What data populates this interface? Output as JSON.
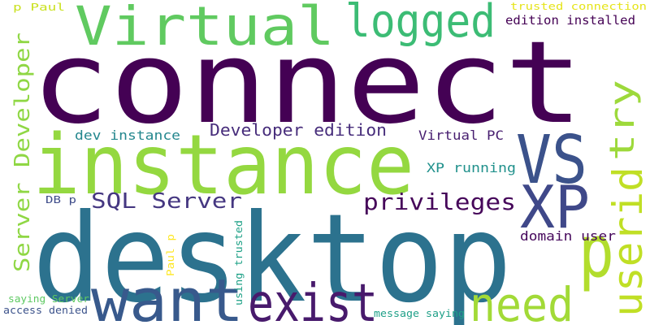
{
  "words": [
    {
      "id": "connect",
      "text": "connect",
      "color": "#440154"
    },
    {
      "id": "desktop",
      "text": "desktop",
      "color": "#2c728e"
    },
    {
      "id": "instance",
      "text": "instance",
      "color": "#94d840"
    },
    {
      "id": "virtual",
      "text": "Virtual",
      "color": "#60ca60"
    },
    {
      "id": "logged",
      "text": "logged",
      "color": "#3cbc75"
    },
    {
      "id": "vs",
      "text": "VS",
      "color": "#3b528b"
    },
    {
      "id": "xp",
      "text": "XP",
      "color": "#3f4889"
    },
    {
      "id": "want",
      "text": "want",
      "color": "#38598c"
    },
    {
      "id": "exist",
      "text": "exist",
      "color": "#481a6c"
    },
    {
      "id": "need",
      "text": "need",
      "color": "#a2da37"
    },
    {
      "id": "p-big",
      "text": "p",
      "color": "#b2dd2d"
    },
    {
      "id": "userid",
      "text": "userid",
      "color": "#c0df25"
    },
    {
      "id": "try",
      "text": "try",
      "color": "#9dd93b"
    },
    {
      "id": "privileges",
      "text": "privileges",
      "color": "#46075a"
    },
    {
      "id": "sql-server",
      "text": "SQL Server",
      "color": "#453781"
    },
    {
      "id": "developer-edition",
      "text": "Developer edition",
      "color": "#472d7b"
    },
    {
      "id": "server-developer",
      "text": "Server Developer",
      "color": "#8fd744"
    },
    {
      "id": "dev-instance",
      "text": "dev instance",
      "color": "#24878e"
    },
    {
      "id": "virtual-pc",
      "text": "Virtual PC",
      "color": "#481f70"
    },
    {
      "id": "xp-running",
      "text": "XP running",
      "color": "#21918c"
    },
    {
      "id": "domain-user",
      "text": "domain user",
      "color": "#46085c"
    },
    {
      "id": "edition-installed",
      "text": "edition installed",
      "color": "#440154"
    },
    {
      "id": "trusted-connection",
      "text": "trusted connection",
      "color": "#e5e419"
    },
    {
      "id": "p-paul",
      "text": "p Paul",
      "color": "#cae11f"
    },
    {
      "id": "db-p",
      "text": "DB p",
      "color": "#3e4c8a"
    },
    {
      "id": "paul-p",
      "text": "Paul p",
      "color": "#fde725"
    },
    {
      "id": "using-trusted",
      "text": "using trusted",
      "color": "#1fa187"
    },
    {
      "id": "saying-server",
      "text": "saying Server",
      "color": "#5ec962"
    },
    {
      "id": "access-denied",
      "text": "access denied",
      "color": "#3b528b"
    },
    {
      "id": "message-saying",
      "text": "message saying",
      "color": "#1fa088"
    }
  ]
}
